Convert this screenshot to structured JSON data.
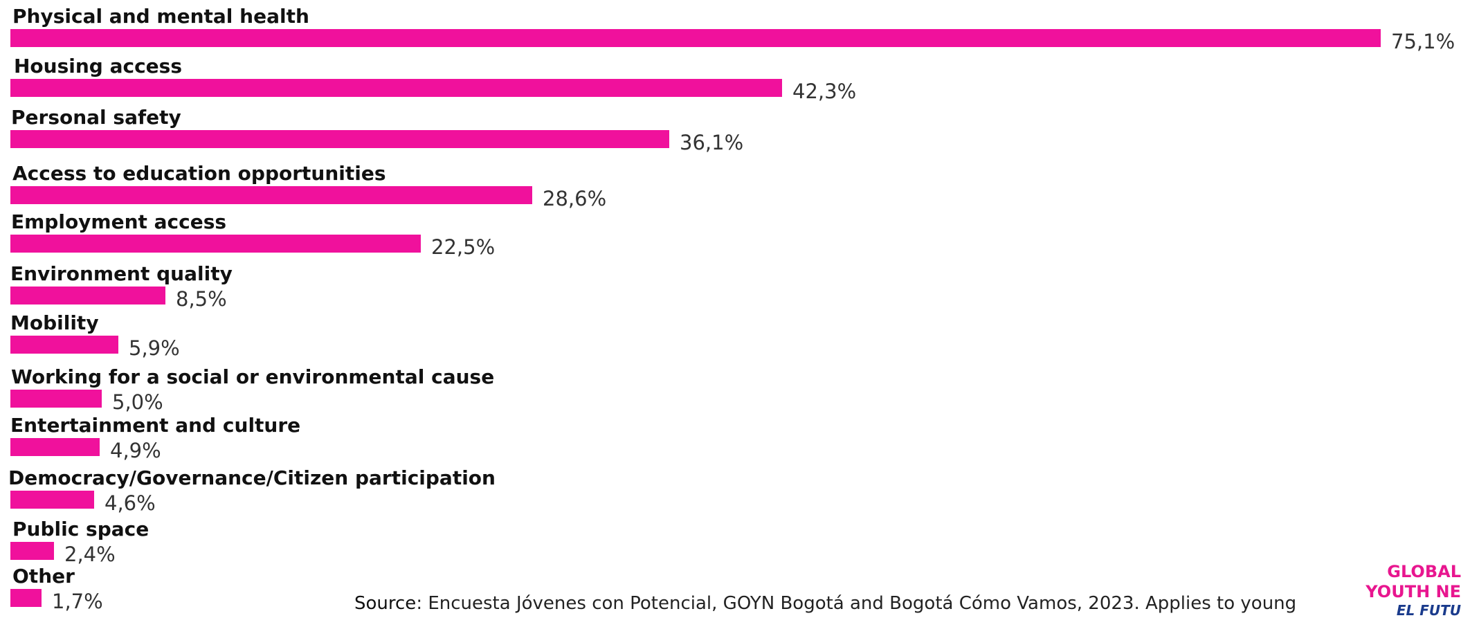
{
  "chart_data": {
    "type": "bar",
    "orientation": "horizontal",
    "categories": [
      "Physical and mental health",
      "Housing access",
      "Personal safety",
      "Access to education opportunities",
      "Employment access",
      "Environment quality",
      "Mobility",
      "Working for a social or environmental cause",
      "Entertainment and culture",
      "Democracy/Governance/Citizen participation",
      "Public space",
      "Other"
    ],
    "values": [
      75.1,
      42.3,
      36.1,
      28.6,
      22.5,
      8.5,
      5.9,
      5.0,
      4.9,
      4.6,
      2.4,
      1.7
    ],
    "value_labels": [
      "75,1%",
      "42,3%",
      "36,1%",
      "28,6%",
      "22,5%",
      "8,5%",
      "5,9%",
      "5,0%",
      "4,9%",
      "4,6%",
      "2,4%",
      "1,7%"
    ],
    "value_unit": "%",
    "title": "",
    "xlabel": "",
    "ylabel": "",
    "xlim": [
      0,
      75.1
    ],
    "grid": false,
    "legend": "none",
    "bar_color": "#f0119c"
  },
  "footer": {
    "source_prefix": "Source",
    "source_text": ": Encuesta Jóvenes con Potencial, GOYN Bogotá and Bogotá Cómo Vamos, 2023.  Applies to young"
  },
  "logo": {
    "line1": "GLOBAL",
    "line2": "YOUTH NE",
    "line3": "EL FUTU",
    "color_primary": "#e8168f",
    "color_secondary": "#1a3b8c"
  }
}
